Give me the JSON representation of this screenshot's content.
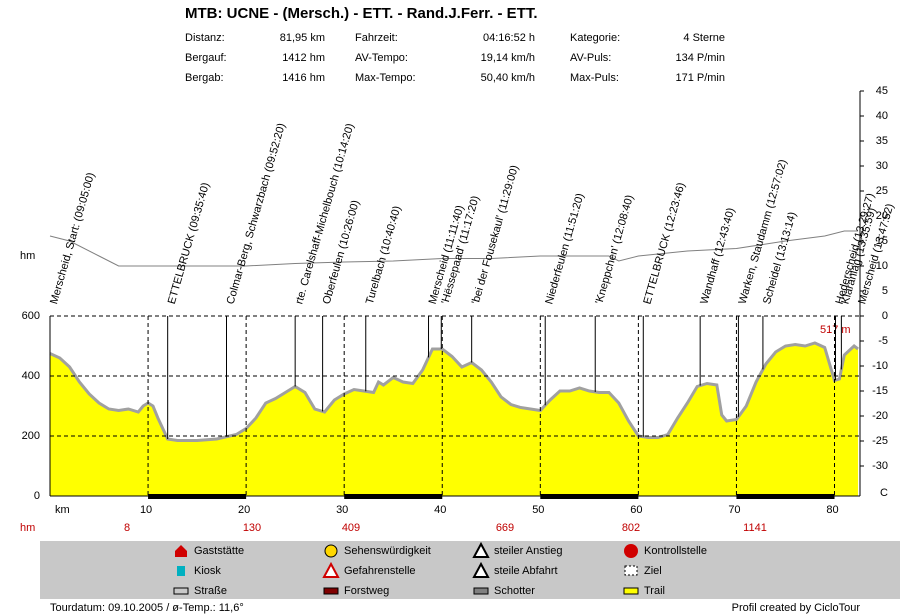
{
  "header": {
    "title": "MTB: UCNE - (Mersch.) - ETT. - Rand.J.Ferr. - ETT.",
    "stats": [
      [
        "Distanz:",
        "81,95 km",
        "Fahrzeit:",
        "04:16:52 h",
        "Kategorie:",
        "4 Sterne"
      ],
      [
        "Bergauf:",
        "1412 hm",
        "AV-Tempo:",
        "19,14 km/h",
        "AV-Puls:",
        "134 P/min"
      ],
      [
        "Bergab:",
        "1416 hm",
        "Max-Tempo:",
        "50,40 km/h",
        "Max-Puls:",
        "171 P/min"
      ]
    ]
  },
  "chart_data": {
    "type": "area",
    "y_label": "hm",
    "y2_label": "C",
    "xlim": [
      0,
      82.6
    ],
    "xticks": [
      {
        "value": 0,
        "label": "km"
      },
      10,
      20,
      30,
      40,
      50,
      60,
      70,
      80
    ],
    "ylim": [
      0,
      600
    ],
    "yticks": [
      0,
      200,
      400,
      600
    ],
    "y2lim": [
      -36,
      45
    ],
    "y2ticks": [
      45,
      40,
      35,
      30,
      25,
      20,
      15,
      10,
      5,
      0,
      -5,
      -10,
      -15,
      -20,
      -25,
      -30
    ],
    "grid": true,
    "series": [
      {
        "color": "#ffff00",
        "x": [
          0,
          1,
          2,
          3,
          4,
          5,
          6,
          7,
          8,
          9,
          9.5,
          10,
          10.5,
          11,
          12,
          13,
          15,
          17,
          19,
          20,
          21,
          22,
          23,
          24,
          25,
          26,
          27,
          28,
          29,
          30,
          31,
          32,
          33,
          33.5,
          34,
          35,
          36,
          37,
          38,
          39,
          40,
          41,
          42,
          43,
          44,
          45,
          46,
          47,
          48,
          49,
          50,
          51,
          52,
          53,
          54,
          55,
          56,
          57,
          58,
          59,
          60,
          61,
          62,
          63,
          64,
          65,
          66,
          67,
          68,
          68.5,
          69,
          70,
          71,
          72,
          73,
          74,
          75,
          76,
          77,
          78,
          79,
          79.5,
          80,
          80.5,
          81,
          82,
          82.4
        ],
        "values": [
          475,
          460,
          430,
          380,
          340,
          310,
          290,
          285,
          290,
          280,
          300,
          310,
          300,
          260,
          190,
          185,
          185,
          190,
          205,
          225,
          260,
          310,
          325,
          345,
          365,
          345,
          290,
          280,
          320,
          340,
          355,
          350,
          345,
          380,
          370,
          395,
          380,
          375,
          420,
          490,
          490,
          465,
          430,
          445,
          420,
          380,
          330,
          305,
          295,
          290,
          285,
          320,
          350,
          350,
          360,
          350,
          345,
          345,
          310,
          250,
          200,
          195,
          195,
          205,
          260,
          310,
          365,
          375,
          370,
          270,
          250,
          255,
          300,
          380,
          440,
          480,
          500,
          505,
          500,
          510,
          495,
          440,
          385,
          390,
          470,
          500,
          490
        ]
      },
      {
        "color": "#808080",
        "axis": "y2",
        "x": [
          0,
          2,
          5,
          7,
          12,
          20,
          25,
          30,
          35,
          40,
          45,
          50,
          57,
          58,
          60,
          65,
          70,
          75,
          79,
          81,
          82.4
        ],
        "values": [
          16,
          15,
          12,
          10,
          10,
          10,
          10.5,
          10.8,
          11,
          11.5,
          11.5,
          12,
          12,
          11,
          12,
          13,
          13.5,
          15,
          16,
          17,
          17
        ]
      }
    ],
    "waypoints": [
      {
        "label": "Merscheid, Start: (09:05:00)",
        "km": 0
      },
      {
        "label": "ETTELBRUCK (09:35:40)",
        "km": 12
      },
      {
        "label": "Colmar-Berg, Schwarzbach (09:52:20)",
        "km": 18
      },
      {
        "label": "rte. Carelshaff-Michelbouch (10:14:20)",
        "km": 25
      },
      {
        "label": "Oberfeulen (10:26:00)",
        "km": 27.8
      },
      {
        "label": "Turelbach (10:40:40)",
        "km": 32.2
      },
      {
        "label": "Merscheid (11:11:40)",
        "km": 38.6
      },
      {
        "label": "'Hëssepaad' (11:17:20)",
        "km": 39.9
      },
      {
        "label": "'bei der Fousekaul' (11:29:00)",
        "km": 43
      },
      {
        "label": "Niederfeulen (11:51:20)",
        "km": 50.5
      },
      {
        "label": "'Kneppchen' (12:08:40)",
        "km": 55.6
      },
      {
        "label": "ETTELBRUCK (12:23:46)",
        "km": 60.5
      },
      {
        "label": "Wandhaff (12:43:40)",
        "km": 66.3
      },
      {
        "label": "Warken, Staudamm (12:57:02)",
        "km": 70.2
      },
      {
        "label": "Scheidel (13:13:14)",
        "km": 72.7
      },
      {
        "label": "Hederscheid (13:29:27)",
        "km": 80.1
      },
      {
        "label": "Kläranlag (13:35:59)",
        "km": 80.7
      },
      {
        "label": "Merscheid (13:47:52)",
        "km": 82.4
      }
    ],
    "annotation": "517 m",
    "climb_label": "hm",
    "climb_values": [
      8,
      130,
      409,
      669,
      802,
      1141
    ]
  },
  "legend": {
    "items": [
      "Gaststätte",
      "Sehenswürdigkeit",
      "steiler Anstieg",
      "Kontrollstelle",
      "Kiosk",
      "Gefahrenstelle",
      "steile Abfahrt",
      "Ziel",
      "Straße",
      "Forstweg",
      "Schotter",
      "Trail"
    ]
  },
  "footer": {
    "left": "Tourdatum: 09.10.2005  /  ø-Temp.: 11,6°",
    "right": "Profil created by CicloTour"
  }
}
